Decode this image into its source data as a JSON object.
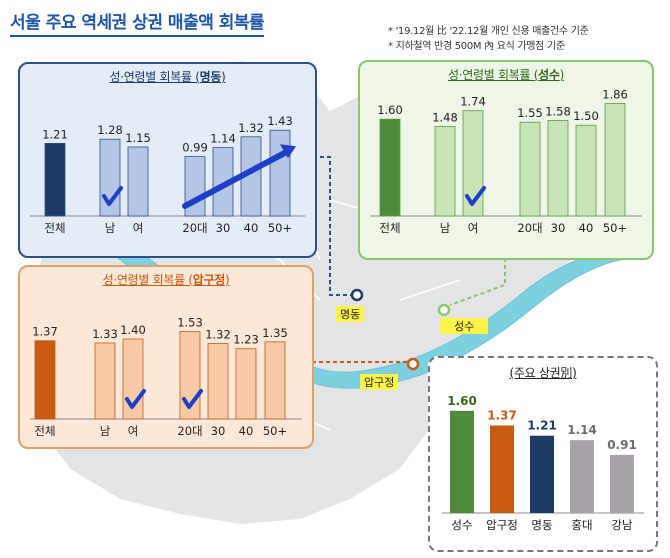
{
  "title": "서울 주요 역세권 상권 매출액 회복률",
  "notes": [
    "* '19.12월 比 '22.12월 개인 신용 매출건수 기준",
    "* 지하철역 반경 500M 內 요식 가맹점 기준"
  ],
  "locations": {
    "myeongdong": "명동",
    "seongsu": "성수",
    "apgujeong": "압구정"
  },
  "chart_data": [
    {
      "type": "bar",
      "title_prefix": "성·연령별 회복률 (",
      "title_bold": "명동",
      "title_suffix": ")",
      "categories": [
        "전체",
        "남",
        "여",
        "20대",
        "30",
        "40",
        "50+"
      ],
      "values": [
        1.21,
        1.28,
        1.15,
        0.99,
        1.14,
        1.32,
        1.43
      ],
      "value_labels": [
        "1.21",
        "1.28",
        "1.15",
        "0.99",
        "1.14",
        "1.32",
        "1.43"
      ],
      "checkmarks": [
        "남"
      ],
      "trend_arrow": "20대 → 50+",
      "colors": {
        "total": "#1e3a66",
        "bars": "#b3c6e6",
        "border": "#2c4f8a",
        "accent": "#1f3fc8"
      }
    },
    {
      "type": "bar",
      "title_prefix": "성·연령별 회복률 (",
      "title_bold": "성수",
      "title_suffix": ")",
      "categories": [
        "전체",
        "남",
        "여",
        "20대",
        "30",
        "40",
        "50+"
      ],
      "values": [
        1.6,
        1.48,
        1.74,
        1.55,
        1.58,
        1.5,
        1.86
      ],
      "value_labels": [
        "1.60",
        "1.48",
        "1.74",
        "1.55",
        "1.58",
        "1.50",
        "1.86"
      ],
      "checkmarks": [
        "여"
      ],
      "colors": {
        "total": "#4e8a3a",
        "bars": "#c9e5b8",
        "border": "#5c9a3e",
        "accent": "#1f3fc8"
      }
    },
    {
      "type": "bar",
      "title_prefix": "성·연령별 회복률 (",
      "title_bold": "압구정",
      "title_suffix": ")",
      "categories": [
        "전체",
        "남",
        "여",
        "20대",
        "30",
        "40",
        "50+"
      ],
      "values": [
        1.37,
        1.33,
        1.4,
        1.53,
        1.32,
        1.23,
        1.35
      ],
      "value_labels": [
        "1.37",
        "1.33",
        "1.40",
        "1.53",
        "1.32",
        "1.23",
        "1.35"
      ],
      "checkmarks": [
        "여",
        "20대"
      ],
      "colors": {
        "total": "#c85a12",
        "bars": "#f7c9a6",
        "border": "#c85a12",
        "accent": "#1f3fc8"
      }
    },
    {
      "type": "bar",
      "title": "(주요 상권別)",
      "categories": [
        "성수",
        "압구정",
        "명동",
        "홍대",
        "강남"
      ],
      "values": [
        1.6,
        1.37,
        1.21,
        1.14,
        0.91
      ],
      "value_labels": [
        "1.60",
        "1.37",
        "1.21",
        "1.14",
        "0.91"
      ],
      "colors": {
        "bars": [
          "#4e8a3a",
          "#c85a12",
          "#1e3a66",
          "#a8a3a8",
          "#a8a3a8"
        ],
        "label_colors": [
          "#2f6a1c",
          "#c85a12",
          "#1e3a66",
          "#6f6a70",
          "#6f6a70"
        ],
        "border": "#666666"
      }
    }
  ]
}
